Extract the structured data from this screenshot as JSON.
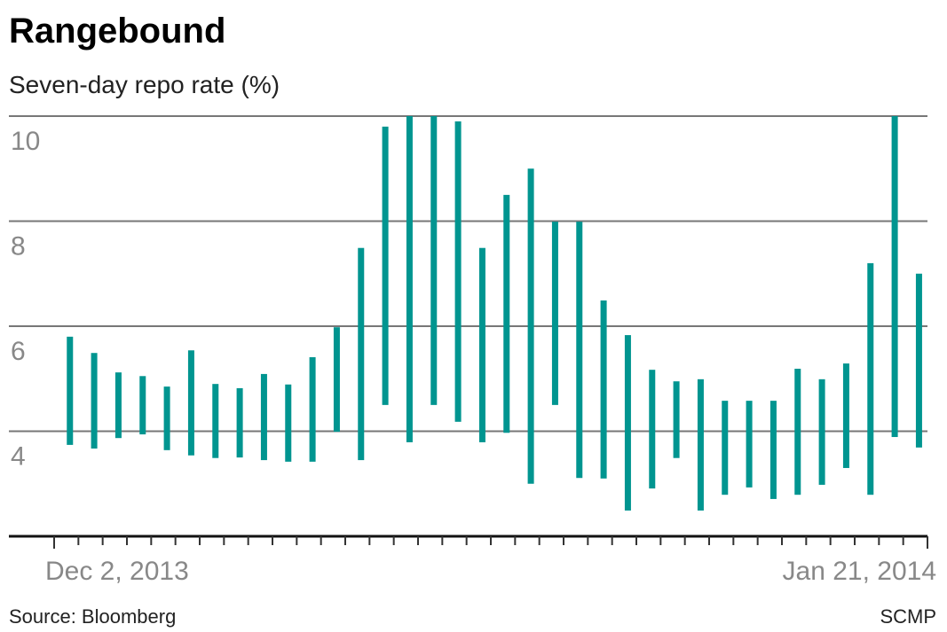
{
  "chart_data": {
    "type": "range_bar",
    "title": "Rangebound",
    "subtitle": "Seven-day repo rate (%)",
    "source": "Source: Bloomberg",
    "credit": "SCMP",
    "x_labels": [
      "Dec 2,  2013",
      "Jan 21, 2014"
    ],
    "categories": [
      null,
      null,
      null,
      null,
      null,
      null,
      null,
      null,
      null,
      null,
      null,
      null,
      null,
      null,
      null,
      null,
      null,
      null,
      null,
      null,
      null,
      null,
      null,
      null,
      null,
      null,
      null,
      null,
      null,
      null,
      null,
      null,
      null,
      null,
      null,
      null
    ],
    "highs": [
      5.8,
      5.49,
      5.12,
      5.05,
      4.85,
      5.54,
      4.9,
      4.82,
      5.09,
      4.89,
      5.41,
      5.98,
      7.49,
      9.8,
      10,
      10,
      9.9,
      7.49,
      8.5,
      9.0,
      7.99,
      7.99,
      6.49,
      5.83,
      5.17,
      4.95,
      4.99,
      4.58,
      4.58,
      4.58,
      5.19,
      4.99,
      5.29,
      7.2,
      10,
      7.0
    ],
    "lows": [
      3.74,
      3.67,
      3.87,
      3.94,
      3.64,
      3.54,
      3.49,
      3.5,
      3.45,
      3.42,
      3.42,
      3.99,
      3.45,
      4.5,
      3.79,
      4.5,
      4.18,
      3.79,
      3.97,
      3.0,
      4.5,
      3.11,
      3.1,
      2.49,
      2.91,
      3.49,
      2.49,
      2.79,
      2.93,
      2.71,
      2.79,
      2.98,
      3.3,
      2.79,
      3.89,
      3.69
    ],
    "color": "#009590",
    "ylim": [
      2,
      10
    ],
    "yticks": [
      4,
      6,
      8,
      10
    ],
    "grid": true
  }
}
